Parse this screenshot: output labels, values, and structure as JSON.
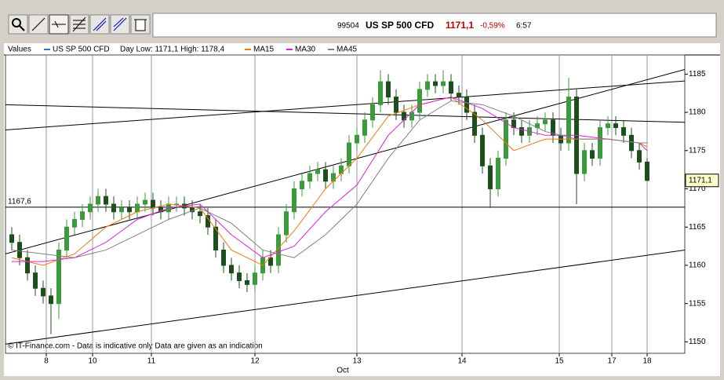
{
  "toolbar": {
    "quote": {
      "code": "99504",
      "name": "US SP 500 CFD",
      "price": "1171,1",
      "change": "-0,59%",
      "time": "6:57"
    }
  },
  "chart_data": {
    "type": "candlestick",
    "legend_title": "Values",
    "instrument": {
      "name": "US SP 500 CFD",
      "color": "#3b6fd6"
    },
    "day_range": "Day Low: 1171,1 High: 1178,4",
    "footer": "© IT-Finance.com - Data is indicative only Data are given as an indication",
    "x_label": "Oct",
    "xlim": [
      -0.8,
      85.8
    ],
    "xticks": [
      {
        "value": 4.4,
        "label": "8"
      },
      {
        "value": 10.3,
        "label": "10"
      },
      {
        "value": 17.8,
        "label": "11"
      },
      {
        "value": 31,
        "label": "12"
      },
      {
        "value": 44,
        "label": "13"
      },
      {
        "value": 57.4,
        "label": "14"
      },
      {
        "value": 69.8,
        "label": "15"
      },
      {
        "value": 76.5,
        "label": "17"
      },
      {
        "value": 81,
        "label": "18"
      }
    ],
    "ylim": [
      1148.5,
      1187.5
    ],
    "yticks": [
      1150,
      1155,
      1160,
      1165,
      1170,
      1175,
      1180,
      1185
    ],
    "grid": "x",
    "up_color": "#3c9a3c",
    "down_color": "#1e4d1e",
    "candles": {
      "open": [
        1164,
        1163,
        1161,
        1159,
        1157,
        1156,
        1155,
        1162,
        1165,
        1166,
        1167,
        1168,
        1169,
        1168,
        1167,
        1167.5,
        1167,
        1168,
        1168.5,
        1167.5,
        1167,
        1168,
        1168,
        1167.5,
        1167,
        1166.5,
        1165,
        1162,
        1160,
        1159,
        1158,
        1157.5,
        1159,
        1161,
        1160,
        1164,
        1167,
        1170,
        1171,
        1172,
        1172.5,
        1171,
        1172,
        1173,
        1176,
        1177,
        1179,
        1181,
        1184,
        1182,
        1180,
        1179,
        1180,
        1183,
        1184,
        1183.5,
        1184,
        1182.5,
        1182,
        1180,
        1177,
        1173,
        1170,
        1174,
        1179,
        1178,
        1177,
        1178,
        1178.5,
        1179,
        1177,
        1176,
        1182,
        1172,
        1175,
        1174,
        1178,
        1178.5,
        1178,
        1177,
        1175,
        1173.5
      ],
      "high": [
        1165,
        1164,
        1162,
        1160,
        1158,
        1157,
        1163,
        1166,
        1167,
        1168,
        1169,
        1170,
        1170,
        1169,
        1168.5,
        1168.5,
        1169,
        1169.5,
        1169.5,
        1168.5,
        1169,
        1169,
        1169,
        1168.5,
        1168,
        1167.5,
        1166,
        1163,
        1161,
        1160,
        1159,
        1160,
        1162,
        1162,
        1165,
        1168,
        1171,
        1172,
        1173,
        1173.5,
        1173.5,
        1173,
        1174,
        1177,
        1178,
        1180,
        1182,
        1185.5,
        1185,
        1183,
        1181,
        1181,
        1184,
        1185,
        1185,
        1185.5,
        1185,
        1183.5,
        1183,
        1181,
        1178,
        1174,
        1175,
        1180,
        1180,
        1179,
        1179,
        1179.5,
        1180,
        1180,
        1178,
        1184.5,
        1183,
        1176,
        1176,
        1179,
        1179.5,
        1179.5,
        1179,
        1178,
        1176,
        1174
      ],
      "low": [
        1162,
        1160,
        1158,
        1156,
        1155,
        1151,
        1153,
        1161,
        1164,
        1165,
        1166,
        1167,
        1167,
        1166,
        1166,
        1166,
        1166,
        1167,
        1166.5,
        1166,
        1166,
        1167,
        1166.5,
        1166,
        1165.5,
        1164,
        1161,
        1159,
        1158,
        1157,
        1156.5,
        1156.5,
        1158,
        1159,
        1159,
        1163,
        1166,
        1169,
        1170,
        1171,
        1170,
        1170,
        1171,
        1172,
        1175,
        1176,
        1178,
        1180,
        1181,
        1179,
        1178,
        1178,
        1179,
        1182,
        1182.5,
        1182.5,
        1181.5,
        1181,
        1179,
        1176,
        1172,
        1167.5,
        1169,
        1173,
        1177,
        1176,
        1176,
        1177,
        1177.5,
        1176,
        1175,
        1175,
        1168,
        1171,
        1173,
        1173,
        1177,
        1177,
        1176,
        1174,
        1172.5,
        1171
      ],
      "close": [
        1163,
        1161,
        1159,
        1157,
        1156,
        1155,
        1162,
        1165,
        1166,
        1167,
        1168,
        1169,
        1168,
        1167,
        1167.5,
        1167,
        1168,
        1168.5,
        1167.5,
        1167,
        1168,
        1168,
        1167.5,
        1167,
        1166.5,
        1165,
        1162,
        1160,
        1159,
        1158,
        1157.5,
        1159,
        1161,
        1160,
        1164,
        1167,
        1170,
        1171,
        1172,
        1172.5,
        1171,
        1172,
        1173,
        1176,
        1177,
        1179,
        1181,
        1184,
        1182,
        1180,
        1179,
        1180,
        1183,
        1184,
        1183.5,
        1184,
        1182.5,
        1182,
        1180,
        1177,
        1173,
        1170,
        1174,
        1179,
        1178,
        1177,
        1178,
        1178.5,
        1179,
        1177,
        1176,
        1182,
        1172,
        1175,
        1174,
        1178,
        1178.5,
        1178,
        1177,
        1175,
        1173.5,
        1171.1
      ]
    },
    "series": [
      {
        "name": "MA15",
        "color": "#f07a10",
        "x": [
          0,
          4,
          8,
          12,
          16,
          20,
          24,
          28,
          32,
          36,
          40,
          44,
          48,
          52,
          56,
          60,
          64,
          68,
          72,
          76,
          80,
          81
        ],
        "values": [
          1161,
          1160,
          1161.5,
          1165,
          1167,
          1168,
          1167.5,
          1162,
          1160,
          1164.5,
          1170,
          1174,
          1179.5,
          1181,
          1182,
          1179,
          1175,
          1176.5,
          1176.5,
          1176.5,
          1176,
          1175.5
        ]
      },
      {
        "name": "MA30",
        "color": "#e020e0",
        "x": [
          0,
          4,
          8,
          12,
          16,
          20,
          24,
          28,
          32,
          36,
          40,
          44,
          48,
          52,
          56,
          60,
          64,
          68,
          72,
          76,
          80,
          81
        ],
        "values": [
          1160.5,
          1160.5,
          1161,
          1163,
          1166,
          1167.5,
          1168,
          1164,
          1161,
          1162.5,
          1167,
          1170.5,
          1177,
          1181,
          1182,
          1180.5,
          1178,
          1177,
          1177,
          1176.5,
          1176,
          1175
        ]
      },
      {
        "name": "MA45",
        "color": "#808080",
        "x": [
          0,
          4,
          8,
          12,
          16,
          20,
          24,
          28,
          32,
          36,
          40,
          44,
          48,
          52,
          56,
          60,
          64,
          68,
          72,
          76,
          80,
          81
        ],
        "values": [
          1162,
          1161.5,
          1161,
          1162,
          1164,
          1166,
          1167.5,
          1165.5,
          1162,
          1161,
          1164,
          1168,
          1174,
          1179,
          1181.5,
          1181,
          1179.5,
          1177.5,
          1176.5,
          1176.5,
          1176,
          1176
        ]
      }
    ],
    "trend_lines": [
      {
        "x": [
          -0.8,
          85.8
        ],
        "y": [
          1161.5,
          1185.6
        ]
      },
      {
        "x": [
          -0.8,
          85.8
        ],
        "y": [
          1181.0,
          1178.7
        ]
      },
      {
        "x": [
          -0.8,
          85.8
        ],
        "y": [
          1177.7,
          1184.1
        ]
      },
      {
        "x": [
          -0.8,
          85.8
        ],
        "y": [
          1149.7,
          1162.0
        ]
      }
    ],
    "hline": {
      "value": 1167.6,
      "label": "1167,6"
    },
    "last_price": {
      "value": 1171.1,
      "label": "1171,1"
    }
  }
}
